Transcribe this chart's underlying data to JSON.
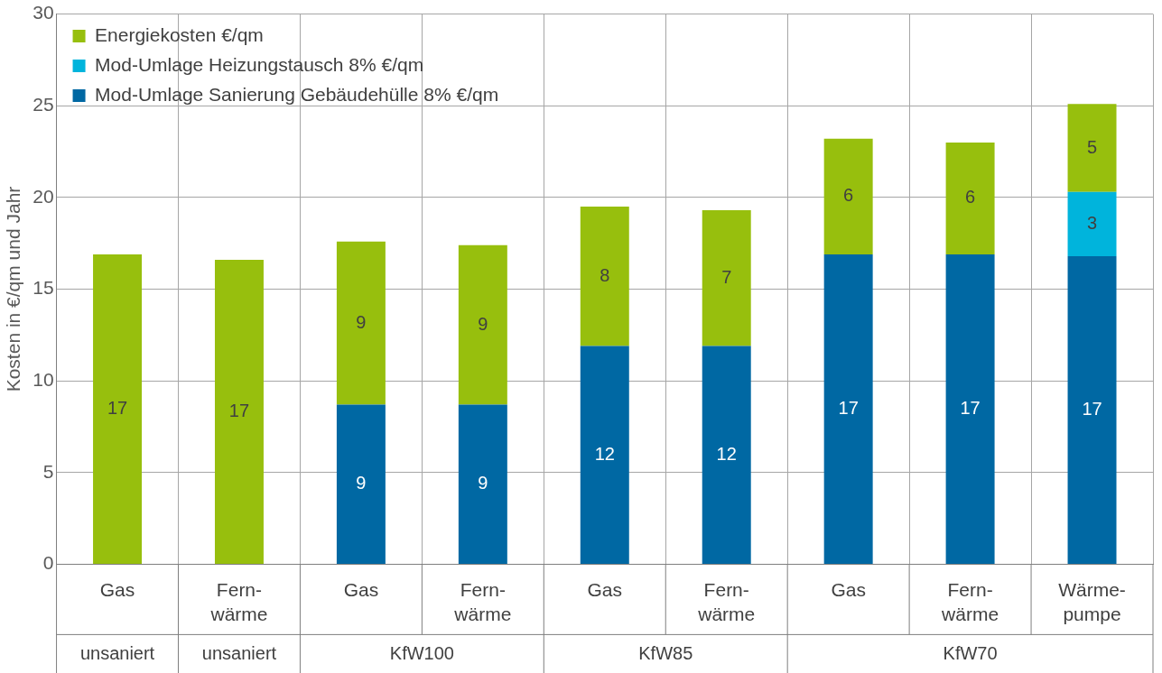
{
  "chart_data": {
    "type": "bar",
    "stacked": true,
    "ylabel": "Kosten in €/qm und Jahr",
    "categories": [
      "Gas",
      "Fern-\nwärme",
      "Gas",
      "Fern-\nwärme",
      "Gas",
      "Fern-\nwärme",
      "Gas",
      "Fern-\nwärme",
      "Wärme-\npumpe"
    ],
    "annotations": [
      "unsaniert",
      "unsaniert",
      "KfW100",
      "KfW85",
      "KfW70"
    ],
    "series": [
      {
        "name": "Mod-Umlage Sanierung Gebäudehülle 8% €/qm",
        "color": "#0068a3",
        "values": [
          null,
          null,
          8.7,
          8.7,
          11.9,
          11.9,
          16.9,
          16.9,
          16.8
        ],
        "value_labels": [
          null,
          null,
          "9",
          "9",
          "12",
          "12",
          "17",
          "17",
          "17"
        ]
      },
      {
        "name": "Mod-Umlage Heizungstausch 8% €/qm",
        "color": "#00b4dc",
        "values": [
          null,
          null,
          null,
          null,
          null,
          null,
          null,
          null,
          3.5
        ],
        "value_labels": [
          null,
          null,
          null,
          null,
          null,
          null,
          null,
          null,
          "3"
        ]
      },
      {
        "name": "Energiekosten €/qm",
        "color": "#97bf0d",
        "values": [
          16.9,
          16.6,
          8.9,
          8.7,
          7.6,
          7.4,
          6.3,
          6.1,
          4.8
        ],
        "value_labels": [
          "17",
          "17",
          "9",
          "9",
          "8",
          "7",
          "6",
          "6",
          "5"
        ]
      }
    ],
    "ylim": [
      0,
      30
    ],
    "yticks": [
      0,
      5,
      10,
      15,
      20,
      25,
      30
    ],
    "grid": true,
    "legend": "top left"
  }
}
